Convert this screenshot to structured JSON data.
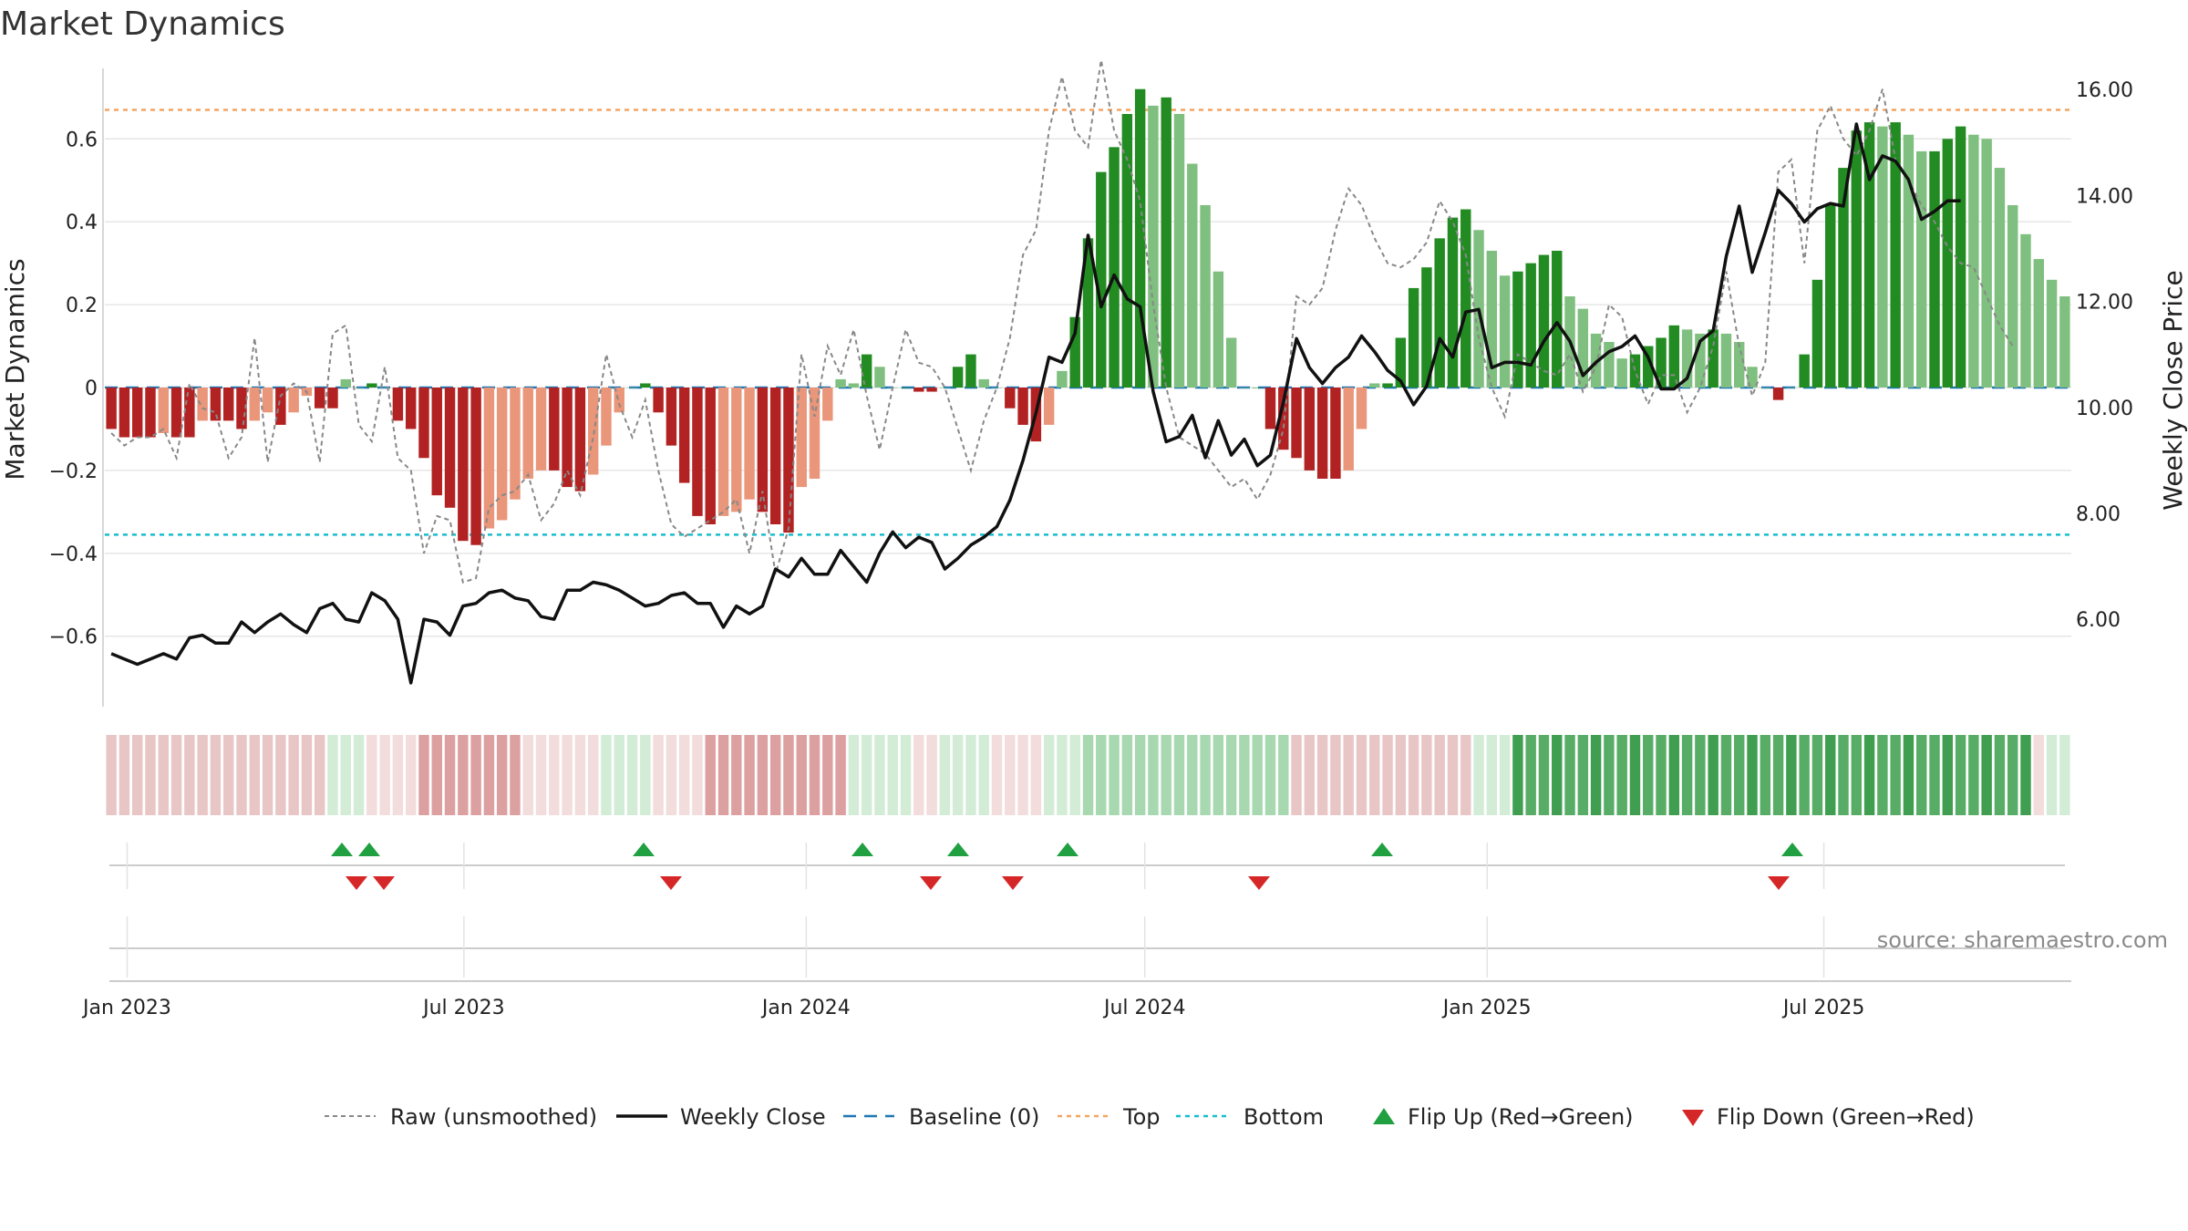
{
  "chart_data": {
    "type": "bar",
    "title": "Market Dynamics",
    "ylabel": "Market Dynamics",
    "y2label": "Weekly Close Price",
    "ylim": [
      -0.77,
      0.77
    ],
    "y2lim": [
      4.35,
      16.4
    ],
    "yticks": [
      "0.6",
      "0.4",
      "0.2",
      "0",
      "−0.2",
      "−0.4",
      "−0.6"
    ],
    "y2ticks": [
      "16.00",
      "14.00",
      "12.00",
      "10.00",
      "8.00",
      "6.00"
    ],
    "xticks": [
      "Jan 2023",
      "Jul 2023",
      "Jan 2024",
      "Jul 2024",
      "Jan 2025",
      "Jul 2025"
    ],
    "top_line": 0.67,
    "bottom_line": -0.355,
    "start_date": "2022-12-20",
    "week_days": 7,
    "xtick_dates": [
      "2023-01-01",
      "2023-07-01",
      "2024-01-01",
      "2024-07-01",
      "2025-01-01",
      "2025-07-01"
    ],
    "bars": [
      -0.1,
      -0.12,
      -0.12,
      -0.12,
      -0.11,
      -0.12,
      -0.12,
      -0.08,
      -0.08,
      -0.08,
      -0.1,
      -0.08,
      -0.06,
      -0.09,
      -0.06,
      -0.02,
      -0.05,
      -0.05,
      0.02,
      0.0,
      0.01,
      0.0,
      -0.08,
      -0.1,
      -0.17,
      -0.26,
      -0.29,
      -0.37,
      -0.38,
      -0.34,
      -0.32,
      -0.27,
      -0.22,
      -0.2,
      -0.2,
      -0.24,
      -0.25,
      -0.21,
      -0.14,
      -0.06,
      0.0,
      0.01,
      -0.06,
      -0.14,
      -0.23,
      -0.31,
      -0.33,
      -0.31,
      -0.3,
      -0.27,
      -0.3,
      -0.33,
      -0.35,
      -0.24,
      -0.22,
      -0.08,
      0.02,
      0.01,
      0.08,
      0.05,
      0.0,
      0.0,
      -0.01,
      -0.01,
      0.0,
      0.05,
      0.08,
      0.02,
      0.0,
      -0.05,
      -0.09,
      -0.13,
      -0.09,
      0.04,
      0.17,
      0.36,
      0.52,
      0.58,
      0.66,
      0.72,
      0.68,
      0.7,
      0.66,
      0.54,
      0.44,
      0.28,
      0.12,
      0.0,
      0.0,
      -0.1,
      -0.15,
      -0.17,
      -0.2,
      -0.22,
      -0.22,
      -0.2,
      -0.1,
      0.01,
      0.01,
      0.12,
      0.24,
      0.29,
      0.36,
      0.41,
      0.43,
      0.38,
      0.33,
      0.27,
      0.28,
      0.3,
      0.32,
      0.33,
      0.22,
      0.19,
      0.13,
      0.11,
      0.07,
      0.08,
      0.1,
      0.12,
      0.15,
      0.14,
      0.13,
      0.14,
      0.13,
      0.11,
      0.05,
      0.0,
      -0.03,
      0.0,
      0.08,
      0.26,
      0.44,
      0.53,
      0.62,
      0.64,
      0.63,
      0.64,
      0.61,
      0.57,
      0.57,
      0.6,
      0.63,
      0.61,
      0.6,
      0.53,
      0.44,
      0.37,
      0.31,
      0.26,
      0.22
    ],
    "raw": [
      -0.11,
      -0.14,
      -0.12,
      -0.12,
      -0.1,
      -0.17,
      0.01,
      -0.05,
      -0.06,
      -0.17,
      -0.12,
      0.12,
      -0.18,
      -0.02,
      0.01,
      -0.01,
      -0.18,
      0.13,
      0.15,
      -0.09,
      -0.13,
      0.05,
      -0.17,
      -0.2,
      -0.4,
      -0.31,
      -0.32,
      -0.47,
      -0.46,
      -0.29,
      -0.26,
      -0.25,
      -0.21,
      -0.32,
      -0.28,
      -0.2,
      -0.26,
      -0.12,
      0.08,
      -0.04,
      -0.12,
      -0.03,
      -0.2,
      -0.33,
      -0.36,
      -0.34,
      -0.32,
      -0.3,
      -0.27,
      -0.4,
      -0.25,
      -0.45,
      -0.34,
      0.08,
      -0.07,
      0.1,
      0.03,
      0.14,
      -0.02,
      -0.15,
      0.0,
      0.14,
      0.06,
      0.05,
      0.0,
      -0.1,
      -0.2,
      -0.08,
      0.0,
      0.12,
      0.32,
      0.38,
      0.62,
      0.75,
      0.62,
      0.58,
      0.79,
      0.62,
      0.55,
      0.45,
      0.2,
      0.0,
      -0.12,
      -0.14,
      -0.16,
      -0.2,
      -0.24,
      -0.22,
      -0.27,
      -0.21,
      -0.1,
      0.22,
      0.2,
      0.24,
      0.38,
      0.48,
      0.44,
      0.36,
      0.3,
      0.29,
      0.31,
      0.35,
      0.45,
      0.4,
      0.32,
      0.12,
      0.0,
      -0.07,
      0.08,
      0.06,
      0.04,
      0.03,
      0.08,
      -0.01,
      0.05,
      0.2,
      0.17,
      0.04,
      -0.04,
      0.03,
      0.03,
      -0.06,
      0.0,
      0.1,
      0.28,
      0.1,
      -0.02,
      0.06,
      0.52,
      0.55,
      0.3,
      0.62,
      0.68,
      0.6,
      0.56,
      0.62,
      0.72,
      0.55,
      0.5,
      0.44,
      0.4,
      0.34,
      0.3,
      0.29,
      0.22,
      0.15,
      0.1
    ],
    "price": [
      5.35,
      5.25,
      5.15,
      5.25,
      5.35,
      5.25,
      5.65,
      5.7,
      5.55,
      5.55,
      5.95,
      5.75,
      5.95,
      6.1,
      5.9,
      5.75,
      6.2,
      6.3,
      6.0,
      5.95,
      6.5,
      6.35,
      6.0,
      4.8,
      6.0,
      5.95,
      5.7,
      6.25,
      6.3,
      6.5,
      6.55,
      6.4,
      6.35,
      6.05,
      6.0,
      6.55,
      6.55,
      6.7,
      6.65,
      6.55,
      6.4,
      6.25,
      6.3,
      6.45,
      6.5,
      6.3,
      6.3,
      5.85,
      6.25,
      6.1,
      6.25,
      6.95,
      6.8,
      7.15,
      6.85,
      6.85,
      7.3,
      7.0,
      6.7,
      7.25,
      7.65,
      7.35,
      7.55,
      7.45,
      6.95,
      7.15,
      7.4,
      7.55,
      7.75,
      8.25,
      9.0,
      9.9,
      10.95,
      10.85,
      11.4,
      13.25,
      11.9,
      12.5,
      12.05,
      11.9,
      10.3,
      9.35,
      9.45,
      9.85,
      9.05,
      9.75,
      9.1,
      9.4,
      8.9,
      9.1,
      10.1,
      11.3,
      10.75,
      10.45,
      10.75,
      10.95,
      11.35,
      11.05,
      10.7,
      10.5,
      10.05,
      10.4,
      11.3,
      10.95,
      11.8,
      11.85,
      10.75,
      10.85,
      10.85,
      10.8,
      11.25,
      11.6,
      11.25,
      10.6,
      10.85,
      11.05,
      11.15,
      11.35,
      10.95,
      10.35,
      10.35,
      10.55,
      11.25,
      11.45,
      12.85,
      13.8,
      12.55,
      13.3,
      14.1,
      13.85,
      13.5,
      13.75,
      13.85,
      13.8,
      15.35,
      14.3,
      14.75,
      14.65,
      14.3,
      13.55,
      13.7,
      13.9,
      13.9
    ],
    "states": "SSSSSSSSSSSSSSSSSLLLWWWWMMMMMMMMWWWWWWLLLLWWWWMMMMMMMMMMMLLLLLWWLLLLWWWWLLLBBBBBBBBBBBBBBBBSSSSSSSSSSSSSSLLLGGGGGGGGGGGGGGGGGGGGGGGGGGGGGGGGGGGGGGGGWLLLGGGGGGBBBBBBBBBBBBBBBB",
    "flip_up_weeks": [
      8,
      9,
      20,
      28,
      31,
      35,
      47,
      61
    ],
    "flip_down_weeks": [
      8,
      9,
      21,
      30,
      33,
      39,
      60
    ],
    "legend": [
      {
        "label": "Raw (unsmoothed)",
        "kind": "dashed-gray"
      },
      {
        "label": "Weekly Close",
        "kind": "solid-black"
      },
      {
        "label": "Baseline (0)",
        "kind": "dashed-blue"
      },
      {
        "label": "Top",
        "kind": "dotted-orange"
      },
      {
        "label": "Bottom",
        "kind": "dotted-cyan"
      },
      {
        "label": "Flip Up (Red→Green)",
        "kind": "triangle-up"
      },
      {
        "label": "Flip Down (Green→Red)",
        "kind": "triangle-down"
      }
    ],
    "source": "source: sharemaestro.com",
    "colors": {
      "bar_strong_pos": "#228b22",
      "bar_weak_pos": "#7fbf7f",
      "bar_strong_neg": "#b22222",
      "bar_weak_neg": "#e9967a",
      "raw": "#888888",
      "price": "#111111",
      "baseline": "#1f77b4",
      "top": "#f4a460",
      "bottom": "#17becf",
      "up": "#20a040",
      "down": "#d62728",
      "grid": "#e6e6e6"
    }
  }
}
